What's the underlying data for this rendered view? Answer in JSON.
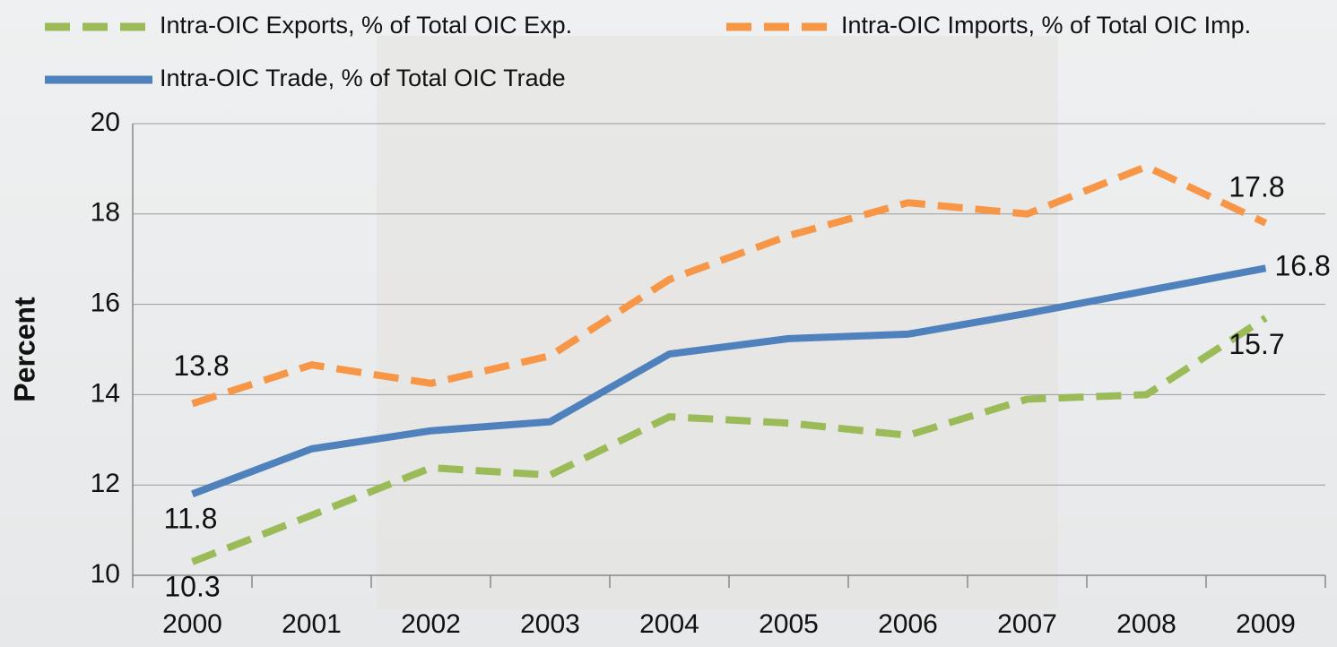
{
  "chart_data": {
    "type": "line",
    "y_label": "Percent",
    "categories": [
      "2000",
      "2001",
      "2002",
      "2003",
      "2004",
      "2005",
      "2006",
      "2007",
      "2008",
      "2009"
    ],
    "series": [
      {
        "name": "Intra-OIC Exports, % of Total OIC Exp.",
        "color": "#9bbb59",
        "dashed": true,
        "values": [
          10.3,
          11.33,
          12.38,
          12.22,
          13.51,
          13.37,
          13.1,
          13.9,
          14.0,
          15.7
        ],
        "value_labels": [
          "10.3",
          null,
          null,
          null,
          null,
          null,
          null,
          null,
          null,
          "15.7"
        ]
      },
      {
        "name": "Intra-OIC Imports, % of Total OIC Imp.",
        "color": "#f79646",
        "dashed": true,
        "values": [
          13.8,
          14.66,
          14.25,
          14.86,
          16.55,
          17.52,
          18.25,
          18.0,
          19.05,
          17.8
        ],
        "value_labels": [
          "13.8",
          null,
          null,
          null,
          null,
          null,
          null,
          null,
          null,
          "17.8"
        ]
      },
      {
        "name": "Intra-OIC Trade, % of Total OIC Trade",
        "color": "#4f81bd",
        "dashed": false,
        "values": [
          11.8,
          12.8,
          13.2,
          13.4,
          14.9,
          15.24,
          15.34,
          15.8,
          16.3,
          16.8
        ],
        "value_labels": [
          "11.8",
          null,
          null,
          null,
          null,
          null,
          null,
          null,
          null,
          "16.8"
        ]
      }
    ],
    "ylim": [
      10,
      20
    ],
    "yticks": [
      10,
      12,
      14,
      16,
      18,
      20
    ],
    "grid": true,
    "legend": "top"
  }
}
